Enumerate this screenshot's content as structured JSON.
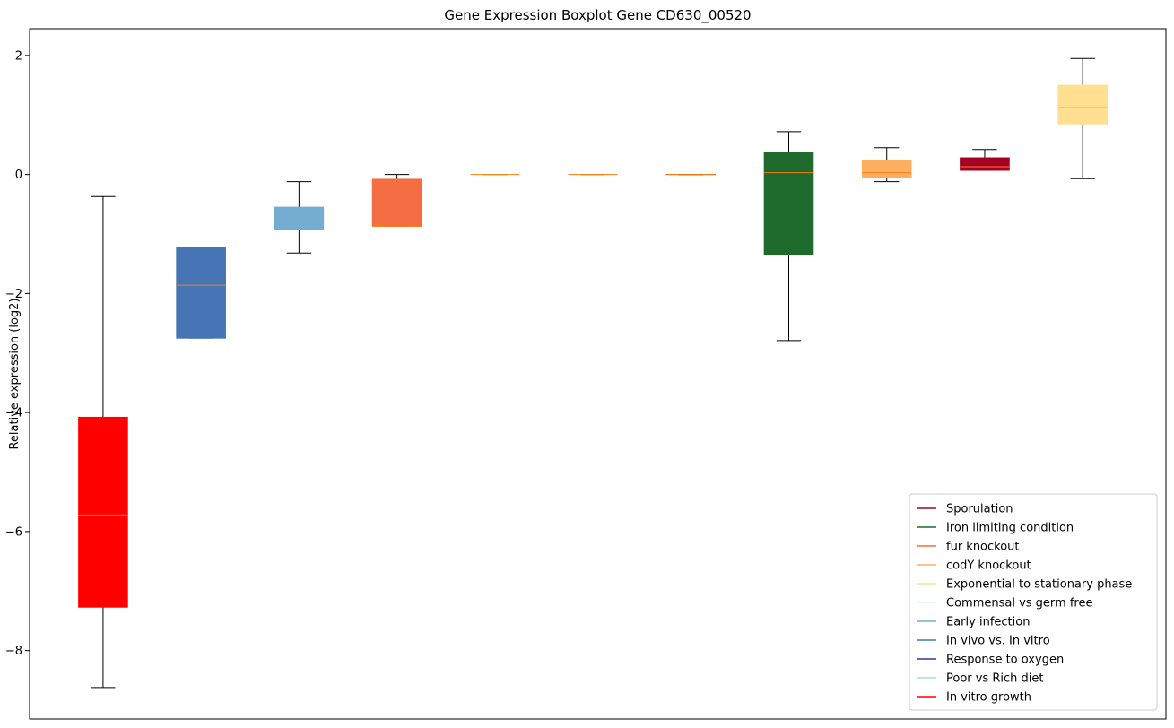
{
  "chart_data": {
    "type": "box",
    "title": "Gene Expression Boxplot Gene CD630_00520",
    "xlabel": "",
    "ylabel": "Relative expression (log2)",
    "ylim": [
      -9.15,
      2.45
    ],
    "yticks": [
      2,
      0,
      -2,
      -4,
      -6,
      -8
    ],
    "grid": false,
    "legend_position": "bottom-right",
    "median_color": "#ff7f0e",
    "boxes": [
      {
        "color": "#ff0000",
        "whisker_low": -8.62,
        "q1": -7.27,
        "median": -5.72,
        "q3": -4.08,
        "whisker_high": -0.37
      },
      {
        "color": "#4575b4",
        "whisker_low": -2.75,
        "q1": -2.75,
        "median": -1.86,
        "q3": -1.22,
        "whisker_high": -1.22
      },
      {
        "color": "#74add1",
        "whisker_low": -1.32,
        "q1": -0.92,
        "median": -0.63,
        "q3": -0.55,
        "whisker_high": -0.12
      },
      {
        "color": "#f46d43",
        "whisker_low": -0.87,
        "q1": -0.87,
        "median": -0.87,
        "q3": -0.08,
        "whisker_high": 0.0
      },
      {
        "color": "#e0f3f8",
        "whisker_low": 0.0,
        "q1": 0.0,
        "median": 0.0,
        "q3": 0.0,
        "whisker_high": 0.0
      },
      {
        "color": "#abd9e9",
        "whisker_low": 0.0,
        "q1": 0.0,
        "median": 0.0,
        "q3": 0.0,
        "whisker_high": 0.0
      },
      {
        "color": "#313695",
        "whisker_low": 0.0,
        "q1": 0.0,
        "median": 0.0,
        "q3": 0.0,
        "whisker_high": 0.0
      },
      {
        "color": "#1f6b2e",
        "whisker_low": -2.79,
        "q1": -1.34,
        "median": 0.03,
        "q3": 0.37,
        "whisker_high": 0.72
      },
      {
        "color": "#fdae61",
        "whisker_low": -0.12,
        "q1": -0.05,
        "median": 0.03,
        "q3": 0.24,
        "whisker_high": 0.45
      },
      {
        "color": "#a50026",
        "whisker_low": 0.07,
        "q1": 0.07,
        "median": 0.13,
        "q3": 0.28,
        "whisker_high": 0.42
      },
      {
        "color": "#fee090",
        "whisker_low": -0.07,
        "q1": 0.85,
        "median": 1.12,
        "q3": 1.5,
        "whisker_high": 1.95
      }
    ],
    "legend": [
      {
        "label": "Sporulation",
        "color": "#a50026"
      },
      {
        "label": "Iron limiting condition",
        "color": "#1f6b2e"
      },
      {
        "label": "fur knockout",
        "color": "#f46d43"
      },
      {
        "label": "codY knockout",
        "color": "#fdae61"
      },
      {
        "label": "Exponential to stationary phase",
        "color": "#fee090"
      },
      {
        "label": "Commensal vs germ free",
        "color": "#e0f3f8"
      },
      {
        "label": "Early infection",
        "color": "#74add1"
      },
      {
        "label": "In vivo vs. In vitro",
        "color": "#4575b4"
      },
      {
        "label": "Response to oxygen",
        "color": "#313695"
      },
      {
        "label": "Poor vs Rich diet",
        "color": "#abd9e9"
      },
      {
        "label": "In vitro growth",
        "color": "#ff0000"
      }
    ]
  }
}
